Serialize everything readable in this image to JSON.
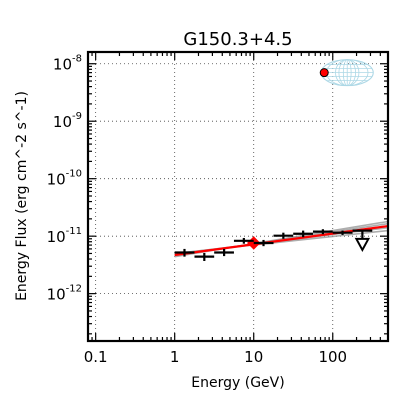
{
  "chart_data": {
    "type": "scatter",
    "title": "G150.3+4.5",
    "xlabel": "Energy (GeV)",
    "ylabel": "Energy Flux (erg cm^-2 s^-1)",
    "x_scale": "log",
    "y_scale": "log",
    "xlim": [
      0.08,
      500
    ],
    "ylim": [
      1.5e-13,
      1.6e-08
    ],
    "x_ticks": [
      {
        "value": 0.1,
        "label": "0.1"
      },
      {
        "value": 1,
        "label": "1"
      },
      {
        "value": 10,
        "label": "10"
      },
      {
        "value": 100,
        "label": "100"
      }
    ],
    "y_ticks": [
      {
        "value": 1e-12,
        "base": "10",
        "exp": "-12"
      },
      {
        "value": 1e-11,
        "base": "10",
        "exp": "-11"
      },
      {
        "value": 1e-10,
        "base": "10",
        "exp": "-10"
      },
      {
        "value": 1e-09,
        "base": "10",
        "exp": "-9"
      },
      {
        "value": 1e-08,
        "base": "10",
        "exp": "-8"
      }
    ],
    "grid": true,
    "series": [
      {
        "kind": "flux_points",
        "color": "#000000",
        "points": [
          {
            "x": 1.33,
            "xlo": 1.0,
            "xhi": 1.78,
            "y": 5.2e-12,
            "ylo": 4.4e-12,
            "yhi": 6e-12
          },
          {
            "x": 2.37,
            "xlo": 1.78,
            "xhi": 3.16,
            "y": 4.4e-12,
            "ylo": 3.7e-12,
            "yhi": 5.1e-12
          },
          {
            "x": 4.22,
            "xlo": 3.16,
            "xhi": 5.62,
            "y": 5.2e-12,
            "ylo": 4.5e-12,
            "yhi": 6e-12
          },
          {
            "x": 7.5,
            "xlo": 5.62,
            "xhi": 10.0,
            "y": 8.3e-12,
            "ylo": 7.4e-12,
            "yhi": 9.3e-12
          },
          {
            "x": 13.3,
            "xlo": 10.0,
            "xhi": 17.8,
            "y": 7.6e-12,
            "ylo": 6.7e-12,
            "yhi": 8.6e-12
          },
          {
            "x": 23.7,
            "xlo": 17.8,
            "xhi": 31.6,
            "y": 1.02e-11,
            "ylo": 9e-12,
            "yhi": 1.15e-11
          },
          {
            "x": 42.2,
            "xlo": 31.6,
            "xhi": 56.2,
            "y": 1.1e-11,
            "ylo": 9.6e-12,
            "yhi": 1.25e-11
          },
          {
            "x": 75.0,
            "xlo": 56.2,
            "xhi": 100.0,
            "y": 1.2e-11,
            "ylo": 1.08e-11,
            "yhi": 1.32e-11
          },
          {
            "x": 133.0,
            "xlo": 100.0,
            "xhi": 178.0,
            "y": 1.15e-11,
            "ylo": 1.05e-11,
            "yhi": 1.25e-11
          }
        ]
      },
      {
        "kind": "upper_limit",
        "color": "#000000",
        "points": [
          {
            "x": 237.0,
            "xlo": 178.0,
            "xhi": 316.0,
            "y": 1.25e-11,
            "arrow_to": 6e-12
          }
        ]
      },
      {
        "kind": "power_law_fit",
        "color": "#ff0000",
        "x": [
          1,
          500
        ],
        "y": [
          4.7e-12,
          1.5e-11
        ]
      },
      {
        "kind": "fit_uncertainty",
        "color": "#999999",
        "lines": [
          {
            "x": [
              1,
              500
            ],
            "y": [
              4.4e-12,
              1.8e-11
            ]
          },
          {
            "x": [
              1,
              500
            ],
            "y": [
              5e-12,
              1.25e-11
            ]
          },
          {
            "x": [
              1,
              500
            ],
            "y": [
              4.6e-12,
              1.65e-11
            ]
          },
          {
            "x": [
              1,
              500
            ],
            "y": [
              4.9e-12,
              1.4e-11
            ]
          }
        ]
      },
      {
        "kind": "pivot_point",
        "color": "#ff0000",
        "points": [
          {
            "x": 10,
            "y": 7.6e-12
          }
        ]
      },
      {
        "kind": "inset_marker",
        "color": "#ff0000",
        "points": [
          {
            "x": 78,
            "y": 7e-09
          }
        ]
      }
    ],
    "inset": {
      "type": "globe-icon",
      "color": "#add8e6"
    }
  }
}
